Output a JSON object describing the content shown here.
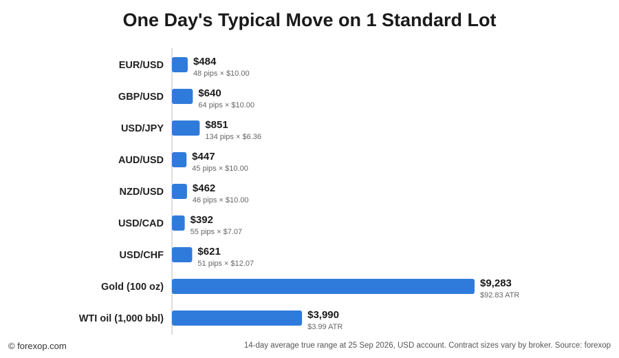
{
  "title": "One Day's Typical Move on 1 Standard Lot",
  "footer": {
    "credit": "© forexop.com",
    "note": "14-day average true range at 25 Sep 2026, USD account. Contract sizes vary by broker. Source: forexop"
  },
  "colors": {
    "bar": "#2f7bdc",
    "axis": "#bbbbbb"
  },
  "chart_data": {
    "type": "bar",
    "orientation": "horizontal",
    "categories": [
      "EUR/USD",
      "GBP/USD",
      "USD/JPY",
      "AUD/USD",
      "NZD/USD",
      "USD/CAD",
      "USD/CHF",
      "Gold (100 oz)",
      "WTI oil (1,000 bbl)"
    ],
    "values": [
      484,
      640,
      851,
      447,
      462,
      392,
      621,
      9283,
      3990
    ],
    "value_labels": [
      "$484",
      "$640",
      "$851",
      "$447",
      "$462",
      "$392",
      "$621",
      "$9,283",
      "$3,990"
    ],
    "sub_labels": [
      "48 pips × $10.00",
      "64 pips × $10.00",
      "134 pips × $6.36",
      "45 pips × $10.00",
      "46 pips × $10.00",
      "55 pips × $7.07",
      "51 pips × $12.07",
      "$92.83 ATR",
      "$3.99 ATR"
    ],
    "xlim": [
      0,
      9283
    ],
    "grid": false,
    "legend": "none"
  }
}
